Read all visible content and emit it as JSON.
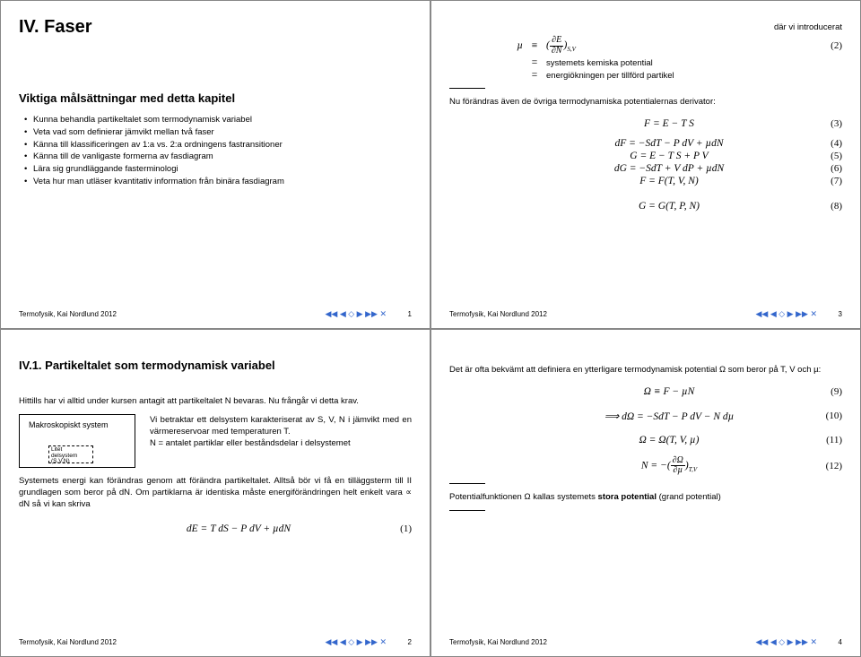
{
  "panel1": {
    "title": "IV. Faser",
    "subheading": "Viktiga målsättningar med detta kapitel",
    "bullets": [
      "Kunna behandla partikeltalet som termodynamisk variabel",
      "Veta vad som definierar jämvikt mellan två faser",
      "Känna till klassificeringen av 1:a vs. 2:a ordningens fastransitioner",
      "Känna till de vanligaste formerna av fasdiagram",
      "Lära sig grundläggande fasterminologi",
      "Veta hur man utläser kvantitativ information från binära fasdiagram"
    ],
    "footer_author": "Termofysik, Kai Nordlund 2012",
    "page_num": "1"
  },
  "panel2": {
    "intro_label": "där vi introducerat",
    "mu_lhs": "µ",
    "mu_op": "≡",
    "mu_rhs_html": "(<span class='frac'><span class='num'>∂E</span><span class='den'>∂N</span></span>)<span class='sub'>S,V</span>",
    "mu_eqnum": "(2)",
    "line2_op": "=",
    "line2_text": "systemets kemiska potential",
    "line3_op": "=",
    "line3_text": "energiökningen per tillförd partikel",
    "para1": "Nu förändras även de övriga termodynamiska potentialernas derivator:",
    "eqs": [
      {
        "txt": "F = E − T S",
        "n": "(3)"
      },
      {
        "txt": "dF = −SdT − P dV + µdN",
        "n": "(4)"
      },
      {
        "txt": "G = E − T S + P V",
        "n": "(5)"
      },
      {
        "txt": "dG = −SdT + V dP + µdN",
        "n": "(6)"
      },
      {
        "txt": "F = F(T, V, N)",
        "n": "(7)"
      },
      {
        "txt": "G = G(T, P, N)",
        "n": "(8)"
      }
    ],
    "footer_author": "Termofysik, Kai Nordlund 2012",
    "page_num": "3"
  },
  "panel3": {
    "heading": "IV.1. Partikeltalet som termodynamisk variabel",
    "intro": "Hittills har vi alltid under kursen antagit att partikeltalet N bevaras. Nu frångår vi detta krav.",
    "makro_label": "Makroskopiskt system",
    "litet_line1": "Litet",
    "litet_line2": "delsystem",
    "litet_line3": "(S,V,N)",
    "diag_text": "Vi betraktar ett delsystem karakteriserat av S, V, N i jämvikt med en värmereservoar med temperaturen T.\nN = antalet partiklar eller beståndsdelar i delsystemet",
    "para2": "Systemets energi kan förändras genom att förändra partikeltalet. Alltså bör vi få en tilläggsterm till II grundlagen som beror på dN. Om partiklarna är identiska måste energiförändringen helt enkelt vara ∝ dN så vi kan skriva",
    "eq1": "dE = T dS − P dV + µdN",
    "eq1_n": "(1)",
    "footer_author": "Termofysik, Kai Nordlund 2012",
    "page_num": "2"
  },
  "panel4": {
    "para1": "Det är ofta bekvämt att definiera en ytterligare termodynamisk potential Ω som beror på T, V och µ:",
    "eqs1": [
      {
        "txt": "Ω ≡ F − µN",
        "n": "(9)"
      },
      {
        "txt": "⟹ dΩ = −SdT − P dV − N dµ",
        "n": "(10)"
      },
      {
        "txt": "Ω = Ω(T, V, µ)",
        "n": "(11)"
      }
    ],
    "eq12_html": "N = −(<span class='frac'><span class='num'>∂Ω</span><span class='den'>∂µ</span></span>)<span class='sub'>T,V</span>",
    "eq12_n": "(12)",
    "para2": "Potentialfunktionen Ω kallas systemets stora potential (grand potential)",
    "footer_author": "Termofysik, Kai Nordlund 2012",
    "page_num": "4"
  },
  "nav_glyphs": "◀◀ ◀ ◇ ▶ ▶▶ ✕"
}
